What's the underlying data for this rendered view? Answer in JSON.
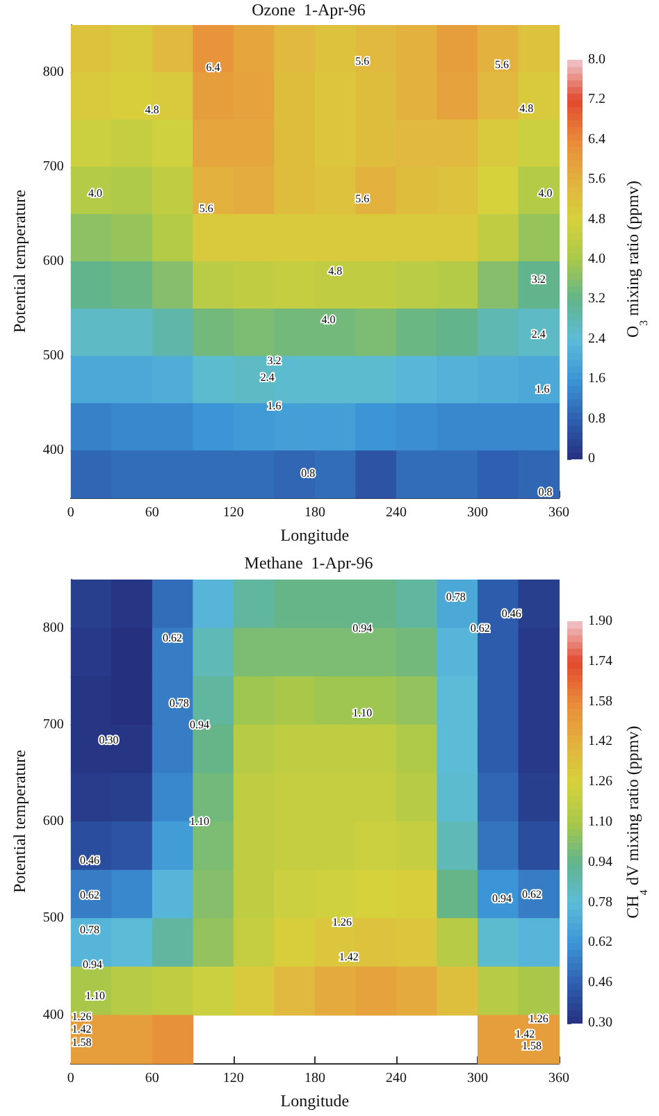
{
  "chart_data": [
    {
      "type": "heatmap",
      "title": "Ozone  1-Apr-96",
      "xlabel": "Longitude",
      "ylabel": "Potential temperature",
      "clabel": "O$_{3}$ mixing ratio (ppmv)",
      "xlim": [
        0,
        360
      ],
      "xticks": [
        0,
        60,
        120,
        180,
        240,
        300,
        360
      ],
      "ylim": [
        350,
        850
      ],
      "yticks": [
        400,
        500,
        600,
        700,
        800
      ],
      "clim": [
        0,
        8
      ],
      "cticks": [
        {
          "value": 0,
          "label": "0"
        },
        {
          "value": 0.8,
          "label": "0.8"
        },
        {
          "value": 1.6,
          "label": "1.6"
        },
        {
          "value": 2.4,
          "label": "2.4"
        },
        {
          "value": 3.2,
          "label": "3.2"
        },
        {
          "value": 4.0,
          "label": "4.0"
        },
        {
          "value": 4.8,
          "label": "4.8"
        },
        {
          "value": 5.6,
          "label": "5.6"
        },
        {
          "value": 6.4,
          "label": "6.4"
        },
        {
          "value": 7.2,
          "label": "7.2"
        },
        {
          "value": 8.0,
          "label": "8.0"
        }
      ],
      "cells": [
        [
          5.2,
          5.0,
          5.4,
          6.2,
          5.8,
          5.4,
          5.2,
          5.4,
          5.6,
          6.0,
          5.6,
          5.2
        ],
        [
          5.0,
          4.9,
          5.0,
          6.0,
          5.9,
          5.3,
          5.1,
          5.3,
          5.6,
          5.9,
          5.4,
          5.0
        ],
        [
          4.6,
          4.5,
          4.7,
          5.8,
          5.8,
          5.3,
          5.1,
          5.3,
          5.4,
          5.4,
          5.0,
          4.6
        ],
        [
          4.2,
          4.1,
          4.4,
          5.6,
          5.7,
          5.3,
          5.2,
          5.6,
          5.3,
          5.2,
          4.8,
          4.2
        ],
        [
          3.7,
          3.8,
          4.2,
          5.0,
          5.0,
          5.0,
          5.0,
          5.0,
          5.0,
          5.0,
          4.4,
          3.8
        ],
        [
          3.2,
          3.3,
          3.6,
          4.3,
          4.4,
          4.5,
          4.4,
          4.4,
          4.3,
          4.2,
          3.6,
          3.2
        ],
        [
          2.6,
          2.6,
          2.9,
          3.4,
          3.5,
          3.4,
          3.4,
          3.5,
          3.3,
          3.2,
          2.8,
          2.6
        ],
        [
          2.0,
          2.0,
          2.1,
          2.5,
          2.6,
          2.5,
          2.5,
          2.5,
          2.3,
          2.2,
          2.1,
          2.0
        ],
        [
          1.3,
          1.4,
          1.4,
          1.6,
          1.7,
          1.8,
          1.8,
          1.6,
          1.5,
          1.4,
          1.4,
          1.4
        ],
        [
          0.9,
          1.0,
          1.0,
          1.0,
          1.0,
          0.9,
          1.0,
          0.6,
          1.0,
          1.0,
          0.8,
          0.9
        ]
      ],
      "annotations": [
        "6.4",
        "5.6",
        "5.6",
        "4.8",
        "4.8",
        "5.6",
        "5.6",
        "4.8",
        "4.0",
        "4.0",
        "4.0",
        "3.2",
        "3.2",
        "2.4",
        "2.4",
        "1.6",
        "1.6",
        "0.8",
        "0.8"
      ]
    },
    {
      "type": "heatmap",
      "title": "Methane  1-Apr-96",
      "xlabel": "Longitude",
      "ylabel": "Potential temperature",
      "clabel": "CH$_{4}$ dV mixing ratio (ppmv)",
      "xlim": [
        0,
        360
      ],
      "xticks": [
        0,
        60,
        120,
        180,
        240,
        300,
        360
      ],
      "ylim": [
        350,
        850
      ],
      "yticks": [
        400,
        500,
        600,
        700,
        800
      ],
      "clim": [
        0.3,
        1.9
      ],
      "cticks": [
        {
          "value": 0.3,
          "label": "0.30"
        },
        0.46,
        0.62,
        0.78,
        0.94,
        {
          "value": 1.1,
          "label": "1.10"
        },
        1.26,
        1.42,
        1.58,
        1.74,
        {
          "value": 1.9,
          "label": "1.90"
        }
      ],
      "cells": [
        [
          0.35,
          0.32,
          0.5,
          0.75,
          0.9,
          0.95,
          0.95,
          0.95,
          0.9,
          0.7,
          0.45,
          0.35
        ],
        [
          0.33,
          0.3,
          0.55,
          0.85,
          1.0,
          1.0,
          1.0,
          1.0,
          0.98,
          0.75,
          0.45,
          0.33
        ],
        [
          0.32,
          0.3,
          0.55,
          0.9,
          1.08,
          1.1,
          1.08,
          1.08,
          1.05,
          0.78,
          0.45,
          0.33
        ],
        [
          0.32,
          0.32,
          0.55,
          0.95,
          1.15,
          1.18,
          1.18,
          1.18,
          1.12,
          0.78,
          0.45,
          0.33
        ],
        [
          0.34,
          0.35,
          0.58,
          0.98,
          1.18,
          1.2,
          1.2,
          1.2,
          1.15,
          0.8,
          0.48,
          0.35
        ],
        [
          0.4,
          0.42,
          0.65,
          1.0,
          1.18,
          1.2,
          1.2,
          1.22,
          1.2,
          0.85,
          0.52,
          0.4
        ],
        [
          0.55,
          0.58,
          0.75,
          1.02,
          1.18,
          1.22,
          1.24,
          1.26,
          1.28,
          0.95,
          0.62,
          0.55
        ],
        [
          0.75,
          0.78,
          0.9,
          1.05,
          1.2,
          1.28,
          1.32,
          1.34,
          1.32,
          1.15,
          0.8,
          0.75
        ],
        [
          1.1,
          1.15,
          1.18,
          1.22,
          1.3,
          1.38,
          1.45,
          1.48,
          1.45,
          1.35,
          1.15,
          1.1
        ],
        [
          1.5,
          1.5,
          1.55,
          null,
          null,
          null,
          null,
          null,
          null,
          null,
          1.5,
          1.5
        ]
      ],
      "annotations": [
        "0.30",
        "0.62",
        "0.78",
        "0.94",
        "0.94",
        "1.10",
        "0.78",
        "0.62",
        "0.46",
        "0.46",
        "0.62",
        "0.78",
        "0.94",
        "1.10",
        "1.26",
        "1.42",
        "1.58",
        "1.10",
        "1.26",
        "1.42",
        "0.94",
        "0.62",
        "1.26",
        "1.42",
        "1.58"
      ]
    }
  ]
}
